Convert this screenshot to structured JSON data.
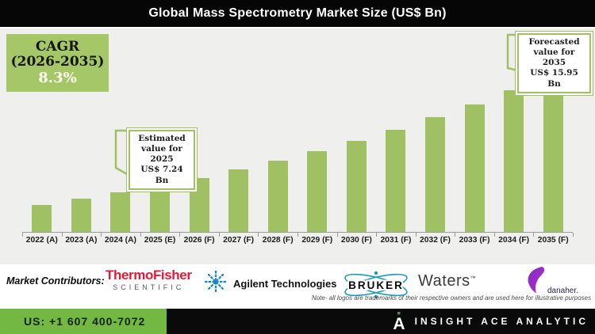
{
  "title": "Global Mass Spectrometry Market Size (US$ Bn)",
  "cagr": {
    "line1": "CAGR",
    "line2": "(2026-2035)",
    "value": "8.3%"
  },
  "callouts": {
    "estimated": {
      "line1": "Estimated",
      "line2": "value for 2025",
      "line3": "US$ 7.24 Bn"
    },
    "forecasted": {
      "line1": "Forecasted",
      "line2": "value for 2035",
      "line3": "US$ 15.95 Bn"
    }
  },
  "chart_data": {
    "type": "bar",
    "title": "Global Mass Spectrometry Market Size (US$ Bn)",
    "unit": "US$ Bn",
    "categories": [
      "2022 (A)",
      "2023 (A)",
      "2024 (A)",
      "2025 (E)",
      "2026 (F)",
      "2027 (F)",
      "2028 (F)",
      "2029 (F)",
      "2030 (F)",
      "2031 (F)",
      "2032 (F)",
      "2033 (F)",
      "2034 (F)",
      "2035 (F)"
    ],
    "values": [
      5.7,
      6.17,
      6.68,
      7.24,
      7.84,
      8.49,
      9.19,
      9.96,
      10.78,
      11.68,
      12.65,
      13.7,
      14.83,
      15.95
    ],
    "labeled_points": [
      {
        "category": "2025 (E)",
        "value": 7.24,
        "label": "Estimated value for 2025 US$ 7.24 Bn"
      },
      {
        "category": "2035 (F)",
        "value": 15.95,
        "label": "Forecasted value for 2035 US$ 15.95 Bn"
      }
    ],
    "cagr_percent": 8.3,
    "cagr_period": "2026-2035",
    "bar_color": "#9fc163",
    "background": "#efefed",
    "legend": false,
    "grid": false,
    "xlabel": "",
    "ylabel": ""
  },
  "contributors": {
    "label": "Market Contributors:",
    "thermo": {
      "line1": "ThermoFisher",
      "line2": "S C I E N T I F I C"
    },
    "agilent": {
      "text": "Agilent Technologies"
    },
    "bruker": {
      "text": "BRUKER"
    },
    "waters": {
      "text": "Waters",
      "tm": "TM"
    },
    "danaher": {
      "text": "danaher."
    },
    "note": "Note- all logos are trademarks of their respective owners and are used here for illustrative purposes"
  },
  "footer": {
    "phone": "US: +1 607 400-7072",
    "brand": "INSIGHT ACE ANALYTIC"
  },
  "colors": {
    "bar_green": "#9fc163",
    "cagr_green": "#a5c768",
    "footer_green": "#72b843",
    "thermo_red": "#e51937",
    "agilent_blue": "#1e88c7",
    "bruker_teal": "#1b9ab0",
    "danaher_purple": "#8a2be2",
    "title_bg": "#060606"
  }
}
